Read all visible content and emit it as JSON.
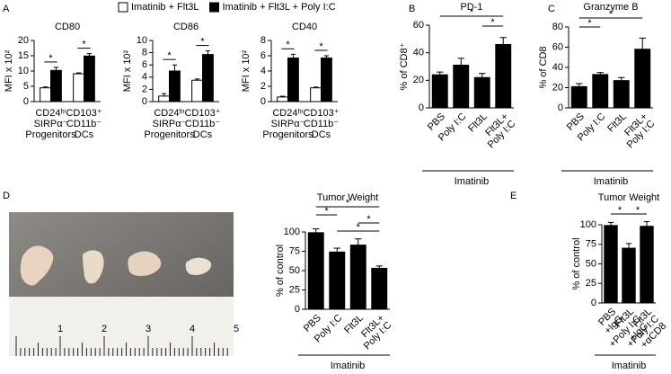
{
  "chart_data": [
    {
      "type": "bar",
      "panel": "A",
      "title": "CD80",
      "ylabel": "MFI x 10²",
      "categories": [
        [
          "CD24ʰⁱ",
          "SIRPα⁻",
          "Progenitors"
        ],
        [
          "CD103⁺",
          "CD11b⁻",
          "DCs"
        ]
      ],
      "series": [
        {
          "name": "Imatinib + Flt3L",
          "color": "#ffffff",
          "values": [
            4.5,
            9.1
          ],
          "errors": [
            0.3,
            0.3
          ]
        },
        {
          "name": "Imatinib + Flt3L + Poly I:C",
          "color": "#000000",
          "values": [
            10.2,
            14.9
          ],
          "errors": [
            1.0,
            0.8
          ]
        }
      ],
      "significance": [
        "*",
        "*"
      ],
      "ylim": [
        0,
        20
      ],
      "yticks": [
        0,
        5,
        10,
        15,
        20
      ]
    },
    {
      "type": "bar",
      "title": "CD86",
      "ylabel": "MFI x 10²",
      "categories": [
        [
          "CD24ʰⁱ",
          "SIRPα⁻",
          "Progenitors"
        ],
        [
          "CD103⁺",
          "CD11b⁻",
          "DCs"
        ]
      ],
      "series": [
        {
          "color": "#ffffff",
          "values": [
            0.9,
            3.5
          ],
          "errors": [
            0.4,
            0.2
          ]
        },
        {
          "color": "#000000",
          "values": [
            5.0,
            7.7
          ],
          "errors": [
            1.0,
            0.6
          ]
        }
      ],
      "significance": [
        "*",
        "*"
      ],
      "ylim": [
        0,
        10
      ],
      "yticks": [
        0,
        2,
        4,
        6,
        8,
        10
      ]
    },
    {
      "type": "bar",
      "title": "CD40",
      "ylabel": "MFI x 10²",
      "categories": [
        [
          "CD24ʰⁱ",
          "SIRPα⁻",
          "Progenitors"
        ],
        [
          "CD103⁺",
          "CD11b⁻",
          "DCs"
        ]
      ],
      "series": [
        {
          "color": "#ffffff",
          "values": [
            0.6,
            1.8
          ],
          "errors": [
            0.1,
            0.1
          ]
        },
        {
          "color": "#000000",
          "values": [
            5.7,
            5.7
          ],
          "errors": [
            0.5,
            0.3
          ]
        }
      ],
      "significance": [
        "*",
        "*"
      ],
      "ylim": [
        0,
        8
      ],
      "yticks": [
        0,
        2,
        4,
        6,
        8
      ]
    },
    {
      "type": "bar",
      "panel": "B",
      "title": "PD-1",
      "ylabel": "% of CD8⁺",
      "categories": [
        [
          "PBS"
        ],
        [
          "Poly I:C"
        ],
        [
          "Flt3L"
        ],
        [
          "Flt3L+",
          "Poly I:C"
        ]
      ],
      "values": [
        24,
        31,
        22,
        46
      ],
      "errors": [
        2,
        5,
        3,
        5
      ],
      "color": "#000000",
      "comparisons": [
        {
          "from": 0,
          "to": 3,
          "label": "*"
        },
        {
          "from": 2,
          "to": 3,
          "label": "*"
        }
      ],
      "group_label": "Imatinib",
      "ylim": [
        0,
        60
      ],
      "yticks": [
        0,
        20,
        40,
        60
      ]
    },
    {
      "type": "bar",
      "panel": "C",
      "title": "Granzyme B",
      "ylabel": "% of CD8",
      "categories": [
        [
          "PBS"
        ],
        [
          "Poly I:C"
        ],
        [
          "Flt3L"
        ],
        [
          "Flt3L+",
          "Poly I:C"
        ]
      ],
      "values": [
        21,
        33,
        27,
        58
      ],
      "errors": [
        3,
        2,
        3,
        11
      ],
      "color": "#000000",
      "comparisons": [
        {
          "from": 0,
          "to": 3,
          "label": "*"
        },
        {
          "from": 0,
          "to": 1,
          "label": "*"
        }
      ],
      "group_label": "Imatinib",
      "ylim": [
        0,
        80
      ],
      "yticks": [
        0,
        20,
        40,
        60,
        80
      ]
    },
    {
      "type": "bar",
      "panel": "D",
      "title": "Tumor Weight",
      "ylabel": "% of control",
      "categories": [
        [
          "PBS"
        ],
        [
          "Poly I:C"
        ],
        [
          "Flt3L"
        ],
        [
          "Flt3L+",
          "Poly I:C"
        ]
      ],
      "values": [
        99,
        74,
        83,
        53
      ],
      "errors": [
        5,
        5,
        8,
        3
      ],
      "color": "#000000",
      "comparisons": [
        {
          "from": 0,
          "to": 3,
          "label": "*"
        },
        {
          "from": 0,
          "to": 1,
          "label": "*"
        },
        {
          "from": 2,
          "to": 3,
          "label": "*"
        },
        {
          "from": 1,
          "to": 3,
          "label": "*"
        }
      ],
      "group_label": "Imatinib",
      "ylim": [
        0,
        100
      ],
      "yticks": [
        0,
        25,
        50,
        75,
        100
      ]
    },
    {
      "type": "bar",
      "panel": "E",
      "title": "Tumor Weight",
      "ylabel": "% of control",
      "categories": [
        [
          "PBS",
          "+IgG"
        ],
        [
          "Flt3L",
          "+Poly I:C",
          "+IgG"
        ],
        [
          "Flt3L",
          "+Poly I:C",
          "+αCD8"
        ]
      ],
      "values": [
        99,
        70,
        98
      ],
      "errors": [
        4,
        6,
        6
      ],
      "color": "#000000",
      "comparisons": [
        {
          "from": 0,
          "to": 1,
          "label": "*"
        },
        {
          "from": 1,
          "to": 2,
          "label": "*"
        }
      ],
      "group_label": "Imatinib",
      "ylim": [
        0,
        100
      ],
      "yticks": [
        0,
        25,
        50,
        75,
        100
      ]
    }
  ],
  "photo": {
    "ruler_labels": [
      "1",
      "2",
      "3",
      "4",
      "5"
    ]
  }
}
